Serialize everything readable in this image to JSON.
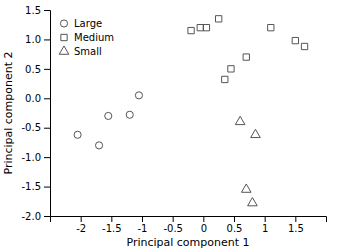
{
  "chart_data": {
    "type": "scatter",
    "xlabel": "Principal component 1",
    "ylabel": "Principal component 2",
    "xlim": [
      -2.5,
      2.0
    ],
    "ylim": [
      -2.0,
      1.5
    ],
    "xticks": [
      -2,
      -1.5,
      -1,
      -0.5,
      0,
      0.5,
      1,
      1.5
    ],
    "yticks": [
      {
        "value": -2.0,
        "label": "-2.0"
      },
      -1.5,
      {
        "value": -1.0,
        "label": "-1.0"
      },
      -0.5,
      {
        "value": 0.0,
        "label": "0.0"
      },
      0.5,
      {
        "value": 1.0,
        "label": "1.0"
      },
      1.5
    ],
    "color": "#555555",
    "grid": false,
    "legend": "upper left",
    "series": [
      {
        "name": "Large",
        "marker": "circle",
        "x": [
          -2.05,
          -1.7,
          -1.55,
          -1.2,
          -1.05
        ],
        "values": [
          -0.62,
          -0.8,
          -0.3,
          -0.28,
          0.05
        ]
      },
      {
        "name": "Medium",
        "marker": "square",
        "x": [
          -0.2,
          -0.05,
          0.05,
          0.25,
          0.35,
          0.45,
          0.7,
          1.1,
          1.5,
          1.65
        ],
        "values": [
          1.15,
          1.2,
          1.2,
          1.35,
          0.32,
          0.5,
          0.7,
          1.2,
          0.98,
          0.88
        ]
      },
      {
        "name": "Small",
        "marker": "triangle",
        "x": [
          0.6,
          0.7,
          0.8,
          0.85
        ],
        "values": [
          -0.4,
          -1.55,
          -1.78,
          -0.62
        ]
      }
    ]
  }
}
